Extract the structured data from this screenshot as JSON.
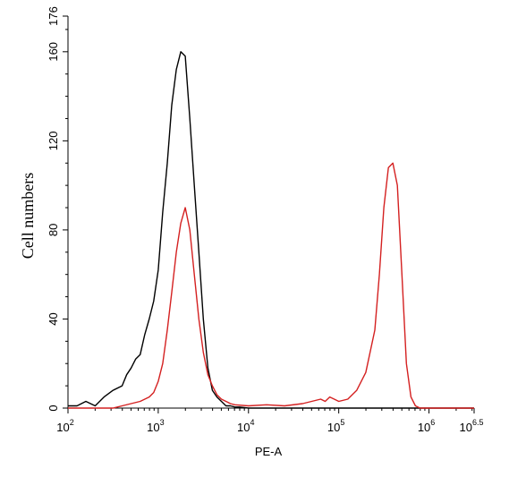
{
  "chart_data": {
    "type": "line",
    "title": "",
    "xlabel": "PE-A",
    "ylabel": "Cell numbers",
    "x_scale": "log10",
    "xlim": [
      100,
      3162277.66
    ],
    "ylim": [
      0,
      176
    ],
    "grid": false,
    "legend": "none",
    "x_ticks": [
      {
        "base": "10",
        "exp": "2",
        "value": 100
      },
      {
        "base": "10",
        "exp": "3",
        "value": 1000
      },
      {
        "base": "10",
        "exp": "4",
        "value": 10000
      },
      {
        "base": "10",
        "exp": "5",
        "value": 100000
      },
      {
        "base": "10",
        "exp": "6",
        "value": 1000000
      },
      {
        "base": "10",
        "exp": "6.5",
        "value": 3162277.66
      }
    ],
    "y_ticks": [
      {
        "label": "0",
        "value": 0
      },
      {
        "label": "40",
        "value": 40
      },
      {
        "label": "80",
        "value": 80
      },
      {
        "label": "120",
        "value": 120
      },
      {
        "label": "160",
        "value": 160
      },
      {
        "label": "176",
        "value": 176
      }
    ],
    "series": [
      {
        "color": "#000000",
        "x": [
          100,
          126,
          158,
          200,
          251,
          316,
          398,
          447,
          501,
          562,
          631,
          708,
          794,
          891,
          1000,
          1122,
          1259,
          1413,
          1585,
          1778,
          1995,
          2239,
          2512,
          2818,
          3162,
          3548,
          3981,
          4467,
          5012,
          5623,
          6310,
          7079,
          7943,
          10000,
          100000,
          1000000,
          3162277.66
        ],
        "y": [
          1,
          1,
          3,
          1,
          5,
          8,
          10,
          15,
          18,
          22,
          24,
          33,
          40,
          48,
          62,
          88,
          110,
          136,
          152,
          160,
          158,
          130,
          100,
          70,
          40,
          18,
          8,
          5,
          3,
          1,
          1,
          0.5,
          0.5,
          0,
          0,
          0,
          0
        ]
      },
      {
        "color": "#d42020",
        "x": [
          100,
          316,
          398,
          501,
          631,
          794,
          891,
          1000,
          1122,
          1259,
          1413,
          1585,
          1778,
          1995,
          2239,
          2512,
          2818,
          3162,
          3548,
          3981,
          4467,
          5012,
          5623,
          6310,
          7079,
          10000,
          15849,
          25119,
          39811,
          50119,
          63096,
          70795,
          79433,
          89125,
          100000,
          125893,
          158489,
          199526,
          251189,
          281838,
          316228,
          354813,
          398107,
          446684,
          501187,
          562341,
          630957,
          707946,
          794328,
          1000000,
          3162277.66
        ],
        "y": [
          0,
          0,
          1,
          2,
          3,
          5,
          7,
          12,
          20,
          35,
          52,
          70,
          83,
          90,
          80,
          60,
          40,
          25,
          15,
          10,
          6,
          4,
          3,
          2,
          1.5,
          1,
          1.5,
          1,
          2,
          3,
          4,
          3,
          5,
          4,
          3,
          4,
          8,
          16,
          35,
          60,
          90,
          108,
          110,
          100,
          60,
          20,
          5,
          1,
          0,
          0,
          0
        ]
      }
    ]
  }
}
